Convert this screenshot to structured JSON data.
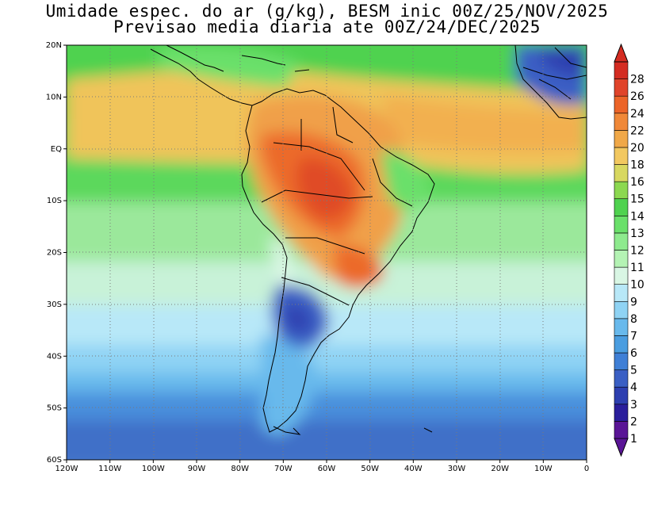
{
  "title_line1": "Umidade espec. do ar (g/kg), BESM inic 00Z/25/NOV/2025",
  "title_line2": "Previsao media diaria ate 00Z/24/DEC/2025",
  "map": {
    "lon_ticks": [
      "120W",
      "110W",
      "100W",
      "90W",
      "80W",
      "70W",
      "60W",
      "50W",
      "40W",
      "30W",
      "20W",
      "10W",
      "0"
    ],
    "lat_ticks": [
      "20N",
      "10N",
      "EQ",
      "10S",
      "20S",
      "30S",
      "40S",
      "50S",
      "60S"
    ],
    "region": "South America and adjacent oceans",
    "grid": "dotted"
  },
  "colorbar": {
    "levels": [
      "1",
      "2",
      "3",
      "4",
      "5",
      "6",
      "7",
      "8",
      "9",
      "10",
      "11",
      "12",
      "13",
      "14",
      "15",
      "16",
      "18",
      "20",
      "22",
      "24",
      "26",
      "28"
    ],
    "colors": [
      "#5a1596",
      "#2a1e9c",
      "#2d3fb0",
      "#3a5fc4",
      "#3f7fd6",
      "#4a9de0",
      "#68b9ec",
      "#8fd3f4",
      "#b8e8f8",
      "#d9f6e4",
      "#b4f3b4",
      "#8eea8e",
      "#6ae06a",
      "#4fd24f",
      "#8cd850",
      "#d8d860",
      "#f2c860",
      "#f0a848",
      "#f08838",
      "#ec6428",
      "#e0442a",
      "#d42c22"
    ]
  }
}
